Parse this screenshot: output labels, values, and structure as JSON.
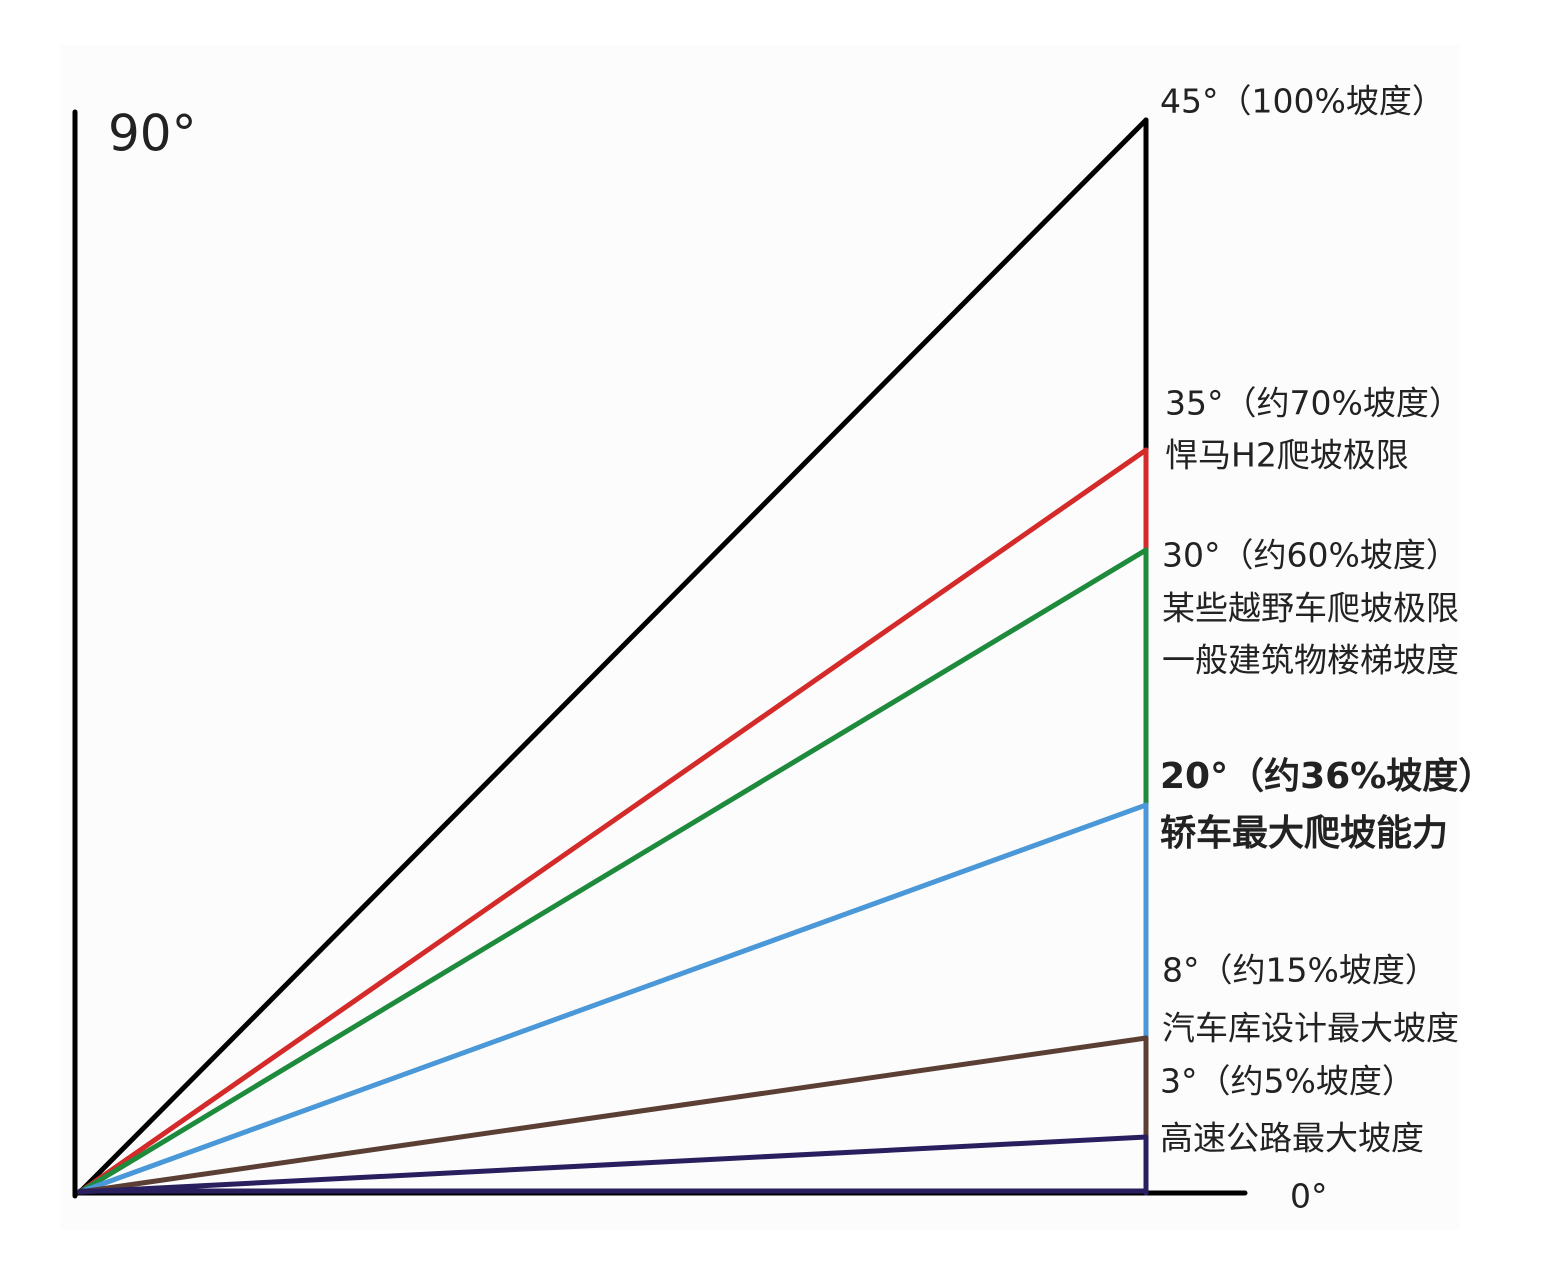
{
  "axis_labels": {
    "vertical": "90°",
    "horizontal": "0°"
  },
  "slopes": [
    {
      "label": "45°（100%坡度）"
    },
    {
      "label": "35°（约70%坡度）",
      "notes": [
        "悍马H2爬坡极限"
      ]
    },
    {
      "label": "30°（约60%坡度）",
      "notes": [
        "某些越野车爬坡极限",
        "一般建筑物楼梯坡度"
      ]
    },
    {
      "label": "20°（约36%坡度）",
      "notes": [
        "轿车最大爬坡能力"
      ]
    },
    {
      "label": "8°（约15%坡度）",
      "notes": [
        "汽车库设计最大坡度"
      ]
    },
    {
      "label": "3°（约5%坡度）",
      "notes": [
        "高速公路最大坡度"
      ]
    }
  ]
}
